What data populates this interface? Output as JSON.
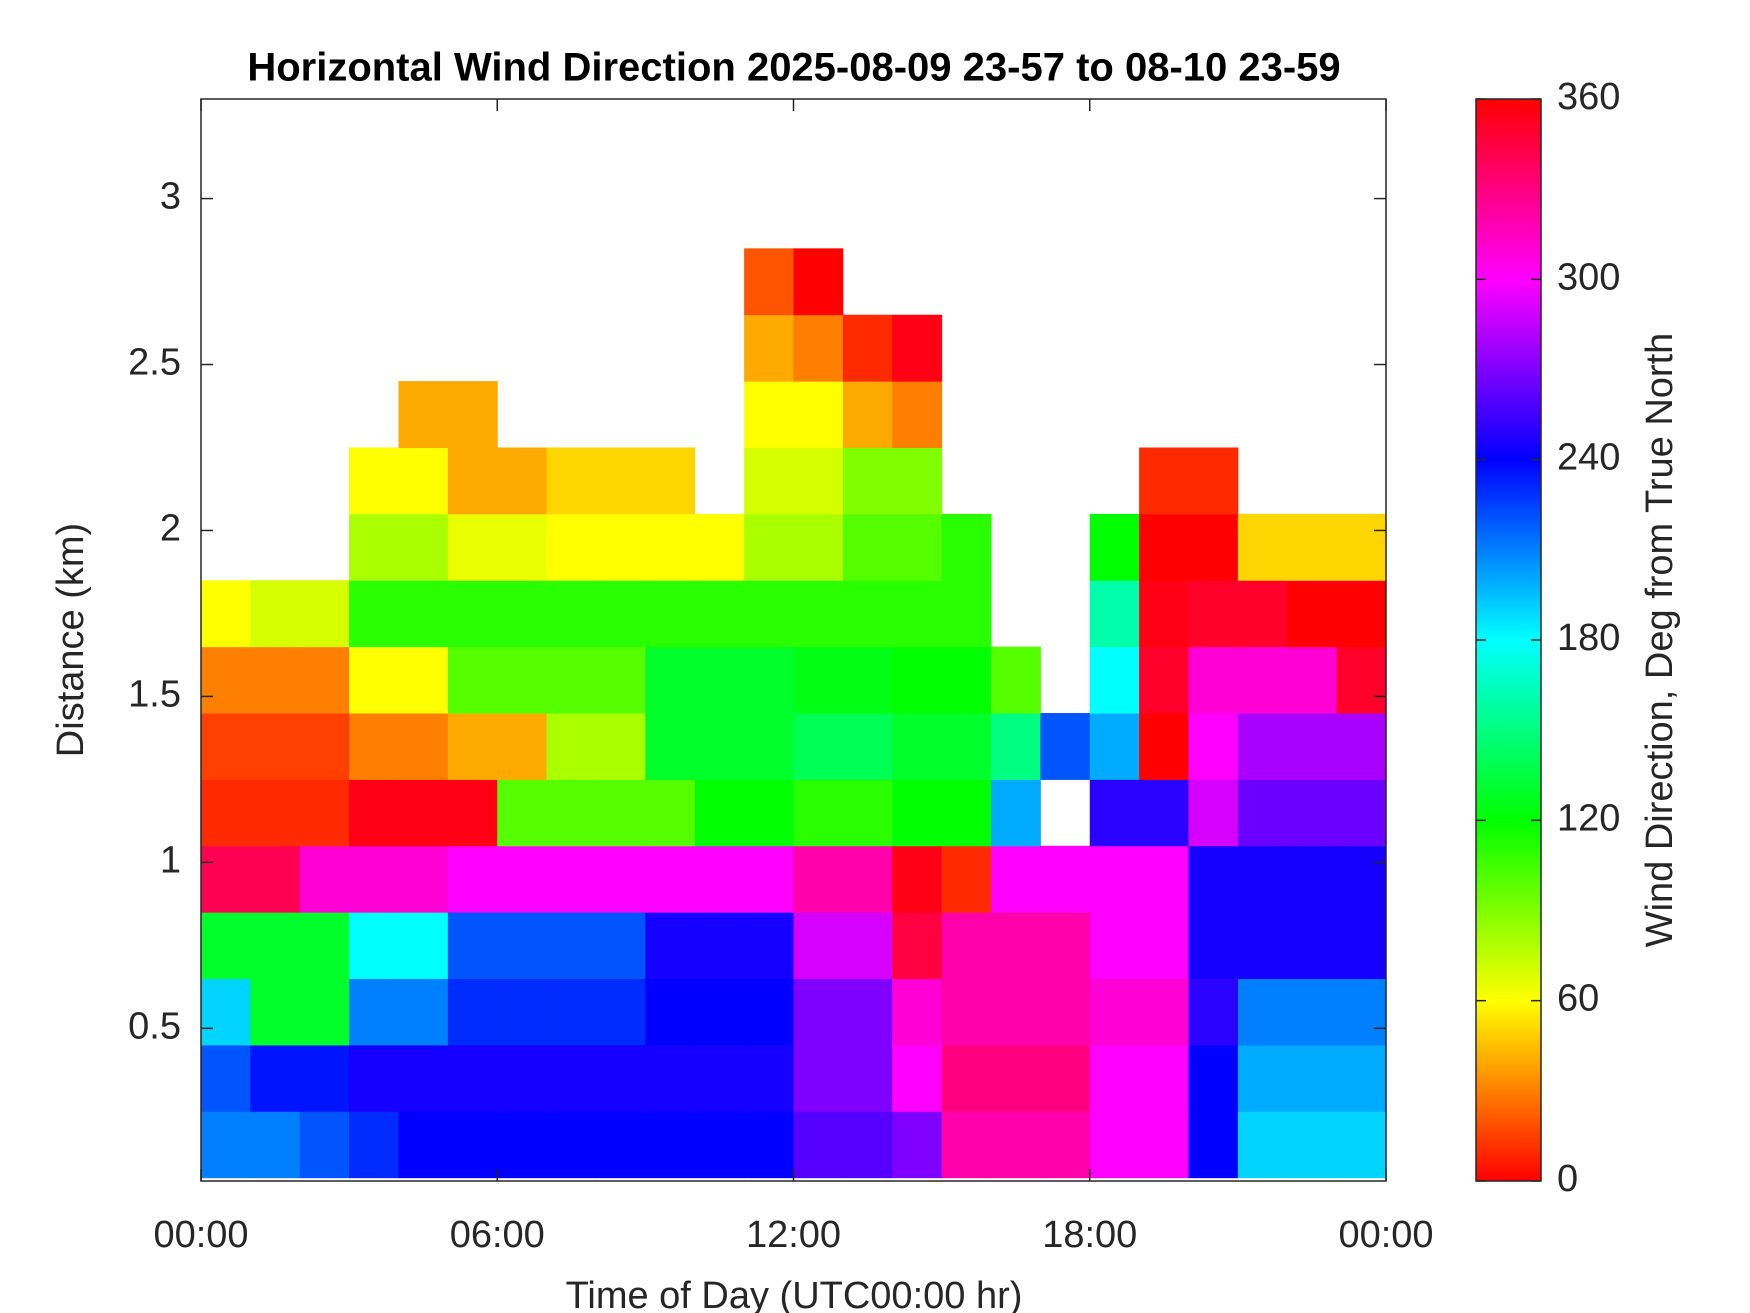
{
  "chart_data": {
    "type": "heatmap",
    "title": "Horizontal Wind Direction 2025-08-09 23-57 to 08-10 23-59",
    "x_label": "Time of Day (UTC00:00 hr)",
    "y_label": "Distance (km)",
    "colorbar_label": "Wind Direction, Deg from True North",
    "colormap": "hsv",
    "x_bins": [
      0,
      1,
      2,
      3,
      4,
      5,
      6,
      7,
      8,
      9,
      10,
      11,
      12,
      13,
      14,
      15,
      16,
      17,
      18,
      19,
      20,
      21,
      22,
      23,
      24
    ],
    "y_bins": [
      0.05,
      0.25,
      0.45,
      0.65,
      0.85,
      1.05,
      1.25,
      1.45,
      1.65,
      1.85,
      2.05,
      2.25,
      2.45,
      2.65,
      2.85
    ],
    "z": [
      [
        210,
        210,
        220,
        230,
        240,
        240,
        240,
        240,
        240,
        240,
        240,
        240,
        260,
        260,
        270,
        320,
        320,
        320,
        300,
        300,
        240,
        190,
        190,
        190
      ],
      [
        220,
        235,
        235,
        245,
        245,
        245,
        245,
        245,
        245,
        245,
        245,
        245,
        270,
        270,
        300,
        330,
        330,
        330,
        300,
        300,
        240,
        200,
        200,
        200
      ],
      [
        190,
        130,
        130,
        210,
        210,
        230,
        230,
        230,
        230,
        240,
        240,
        240,
        270,
        270,
        310,
        320,
        320,
        320,
        310,
        310,
        250,
        210,
        210,
        210
      ],
      [
        130,
        130,
        130,
        180,
        180,
        220,
        220,
        220,
        220,
        245,
        245,
        245,
        290,
        290,
        345,
        320,
        320,
        320,
        300,
        300,
        245,
        245,
        245,
        245
      ],
      [
        340,
        340,
        310,
        310,
        310,
        300,
        300,
        300,
        300,
        300,
        300,
        300,
        320,
        320,
        355,
        10,
        300,
        300,
        300,
        300,
        245,
        245,
        245,
        245
      ],
      [
        10,
        10,
        10,
        355,
        355,
        355,
        100,
        100,
        100,
        100,
        120,
        120,
        110,
        110,
        120,
        120,
        200,
        null,
        250,
        250,
        290,
        265,
        265,
        265
      ],
      [
        15,
        15,
        15,
        30,
        30,
        40,
        40,
        80,
        80,
        130,
        130,
        130,
        140,
        140,
        130,
        130,
        150,
        220,
        200,
        0,
        300,
        280,
        280,
        280
      ],
      [
        30,
        30,
        30,
        60,
        60,
        100,
        100,
        100,
        100,
        130,
        130,
        130,
        125,
        125,
        120,
        120,
        100,
        null,
        180,
        350,
        310,
        310,
        310,
        350
      ],
      [
        60,
        70,
        70,
        110,
        110,
        110,
        110,
        110,
        110,
        110,
        110,
        110,
        110,
        110,
        110,
        110,
        null,
        null,
        160,
        355,
        350,
        350,
        0,
        0
      ],
      [
        null,
        null,
        null,
        80,
        80,
        65,
        65,
        60,
        60,
        60,
        60,
        80,
        80,
        100,
        100,
        110,
        null,
        null,
        120,
        0,
        0,
        50,
        50,
        50
      ],
      [
        null,
        null,
        null,
        60,
        60,
        40,
        40,
        50,
        50,
        50,
        null,
        70,
        70,
        90,
        90,
        null,
        null,
        null,
        null,
        10,
        10,
        null,
        null,
        null
      ],
      [
        null,
        null,
        null,
        null,
        40,
        40,
        null,
        null,
        null,
        null,
        null,
        60,
        60,
        40,
        30,
        null,
        null,
        null,
        null,
        null,
        null,
        null,
        null,
        null
      ],
      [
        null,
        null,
        null,
        null,
        null,
        null,
        null,
        null,
        null,
        null,
        null,
        40,
        30,
        10,
        355,
        null,
        null,
        null,
        null,
        null,
        null,
        null,
        null,
        null
      ],
      [
        null,
        null,
        null,
        null,
        null,
        null,
        null,
        null,
        null,
        null,
        null,
        20,
        0,
        null,
        null,
        null,
        null,
        null,
        null,
        null,
        null,
        null,
        null,
        null
      ]
    ],
    "xlim": [
      0,
      24
    ],
    "xticks": [
      {
        "value": 0,
        "label": "00:00"
      },
      {
        "value": 6,
        "label": "06:00"
      },
      {
        "value": 12,
        "label": "12:00"
      },
      {
        "value": 18,
        "label": "18:00"
      },
      {
        "value": 24,
        "label": "00:00"
      }
    ],
    "ylim": [
      0.04,
      3.3
    ],
    "yticks": [
      0.5,
      1,
      1.5,
      2,
      2.5,
      3
    ],
    "clim": [
      0,
      360
    ],
    "colorbar_ticks": [
      0,
      60,
      120,
      180,
      240,
      300,
      360
    ]
  }
}
